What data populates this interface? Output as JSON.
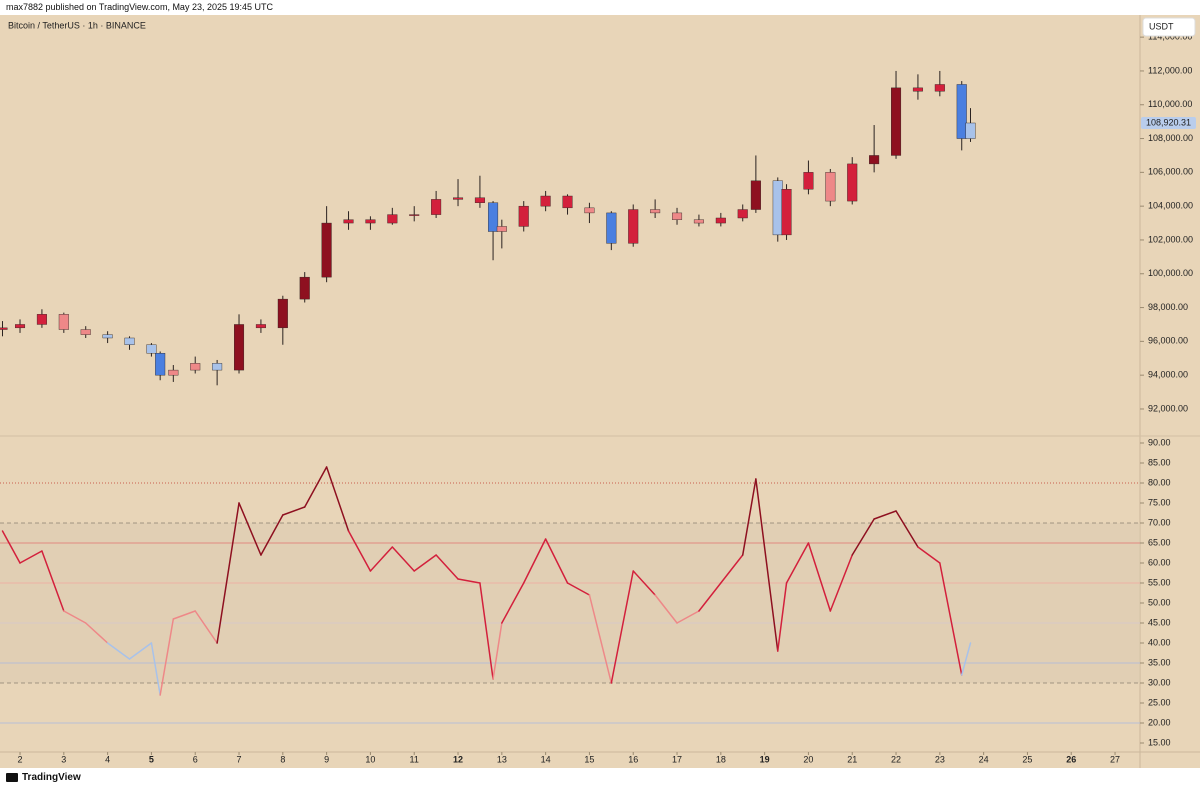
{
  "header": {
    "publisher": "max7882 published on TradingView.com, May 23, 2025 19:45 UTC"
  },
  "footer": {
    "brand": "TradingView"
  },
  "chart_data": {
    "type": "candlestick",
    "title": "Bitcoin / TetherUS · 1h · BINANCE",
    "currency": "USDT",
    "last_price": {
      "value": 108920.31,
      "label": "108,920.31"
    },
    "x": [
      1.6,
      2,
      2.5,
      3,
      3.5,
      4,
      4.5,
      5,
      5.2,
      5.5,
      6,
      6.5,
      7,
      7.5,
      8,
      8.5,
      9,
      9.5,
      10,
      10.5,
      11,
      11.5,
      12,
      12.5,
      12.8,
      13,
      13.5,
      14,
      14.5,
      15,
      15.5,
      16,
      16.5,
      17,
      17.5,
      18,
      18.5,
      18.8,
      19.3,
      19.5,
      20,
      20.5,
      21,
      21.5,
      22,
      22.5,
      23,
      23.5,
      23.7
    ],
    "open": [
      96700,
      96800,
      97000,
      97600,
      96700,
      96400,
      96200,
      95800,
      95300,
      94000,
      94300,
      94700,
      94300,
      97000,
      96800,
      98500,
      99800,
      103000,
      103200,
      103000,
      103500,
      103500,
      104400,
      104500,
      104200,
      102500,
      102800,
      104000,
      104600,
      103900,
      103600,
      101800,
      103800,
      103600,
      103200,
      103000,
      103300,
      103800,
      105500,
      102300,
      105000,
      106000,
      104300,
      106500,
      107000,
      111000,
      110800,
      111200,
      108000
    ],
    "high": [
      97200,
      97300,
      97900,
      97700,
      96900,
      96600,
      96300,
      95900,
      95400,
      94600,
      95100,
      94900,
      97600,
      97300,
      98700,
      100100,
      104000,
      103700,
      103400,
      103900,
      104000,
      104900,
      105600,
      105800,
      104300,
      103200,
      104300,
      104900,
      104700,
      104200,
      103700,
      104100,
      104400,
      103900,
      103500,
      103600,
      104100,
      107000,
      105700,
      105300,
      106700,
      106200,
      106900,
      108800,
      112000,
      111800,
      112000,
      111400,
      109800
    ],
    "low": [
      96300,
      96500,
      96800,
      96500,
      96200,
      95900,
      95500,
      95100,
      93700,
      93600,
      94100,
      93400,
      94100,
      96500,
      95800,
      98300,
      99500,
      102600,
      102600,
      102900,
      103100,
      103300,
      104000,
      103900,
      100800,
      101500,
      102500,
      103700,
      103500,
      103000,
      101400,
      101600,
      103300,
      102900,
      102800,
      102800,
      103100,
      103600,
      101900,
      102000,
      104700,
      104000,
      104100,
      106000,
      106800,
      110300,
      110500,
      107300,
      107800
    ],
    "close": [
      96800,
      97000,
      97600,
      96700,
      96400,
      96200,
      95800,
      95300,
      94000,
      94300,
      94700,
      94300,
      97000,
      96800,
      98500,
      99800,
      103000,
      103200,
      103000,
      103500,
      103500,
      104400,
      104500,
      104200,
      102500,
      102800,
      104000,
      104600,
      103900,
      103600,
      101800,
      103800,
      103600,
      103200,
      103000,
      103300,
      103800,
      105500,
      102300,
      105000,
      106000,
      104300,
      106500,
      107000,
      111000,
      110800,
      111200,
      108000,
      108920.31
    ],
    "xlim": [
      1.543,
      27.57
    ],
    "xticks": [
      2,
      3,
      4,
      5,
      6,
      7,
      8,
      9,
      10,
      11,
      12,
      13,
      14,
      15,
      16,
      17,
      18,
      19,
      20,
      21,
      22,
      23,
      24,
      25,
      26,
      27
    ],
    "xticks_bold": [
      5,
      12,
      19,
      26
    ],
    "ylim": [
      90460,
      115310
    ],
    "yticks": [
      {
        "value": 92000,
        "label": "92,000.00"
      },
      {
        "value": 94000,
        "label": "94,000.00"
      },
      {
        "value": 96000,
        "label": "96,000.00"
      },
      {
        "value": 98000,
        "label": "98,000.00"
      },
      {
        "value": 100000,
        "label": "100,000.00"
      },
      {
        "value": 102000,
        "label": "102,000.00"
      },
      {
        "value": 104000,
        "label": "104,000.00"
      },
      {
        "value": 106000,
        "label": "106,000.00"
      },
      {
        "value": 108000,
        "label": "108,000.00"
      },
      {
        "value": 110000,
        "label": "110,000.00"
      },
      {
        "value": 112000,
        "label": "112,000.00"
      },
      {
        "value": 114000,
        "label": "114,000.00"
      }
    ],
    "color_bands": [
      {
        "min": 70,
        "color": "#8e1020"
      },
      {
        "min": 55,
        "color": "#d3203c"
      },
      {
        "min": 45,
        "color": "#ee8888"
      },
      {
        "min": 35,
        "color": "#a8c2ea"
      },
      {
        "min": 0,
        "color": "#4a7fe0"
      }
    ],
    "rsi": {
      "values": [
        68,
        60,
        63,
        48,
        45,
        40,
        36,
        40,
        27,
        46,
        48,
        40,
        75,
        62,
        72,
        74,
        84,
        68,
        58,
        64,
        58,
        62,
        56,
        55,
        31,
        45,
        55,
        66,
        55,
        52,
        30,
        58,
        52,
        45,
        48,
        55,
        62,
        81,
        38,
        55,
        65,
        48,
        62,
        71,
        73,
        64,
        60,
        32,
        40
      ],
      "ylim": [
        12.75,
        91.5
      ],
      "yticks": [
        {
          "value": 15,
          "label": "15.00"
        },
        {
          "value": 20,
          "label": "20.00"
        },
        {
          "value": 25,
          "label": "25.00"
        },
        {
          "value": 30,
          "label": "30.00"
        },
        {
          "value": 35,
          "label": "35.00"
        },
        {
          "value": 40,
          "label": "40.00"
        },
        {
          "value": 45,
          "label": "45.00"
        },
        {
          "value": 50,
          "label": "50.00"
        },
        {
          "value": 55,
          "label": "55.00"
        },
        {
          "value": 60,
          "label": "60.00"
        },
        {
          "value": 65,
          "label": "65.00"
        },
        {
          "value": 70,
          "label": "70.00"
        },
        {
          "value": 75,
          "label": "75.00"
        },
        {
          "value": 80,
          "label": "80.00"
        },
        {
          "value": 85,
          "label": "85.00"
        },
        {
          "value": 90,
          "label": "90.00"
        }
      ],
      "band": [
        30,
        70
      ],
      "levels": [
        {
          "value": 80,
          "color": "#c0392b",
          "style": "dotted"
        },
        {
          "value": 70,
          "color": "#8a8070",
          "style": "dashed"
        },
        {
          "value": 65,
          "color": "#e07070",
          "style": "solid"
        },
        {
          "value": 55,
          "color": "#f0a8a0",
          "style": "solid"
        },
        {
          "value": 45,
          "color": "#d4c8d0",
          "style": "solid"
        },
        {
          "value": 35,
          "color": "#a8b8e0",
          "style": "solid"
        },
        {
          "value": 30,
          "color": "#8a8070",
          "style": "dashed"
        },
        {
          "value": 20,
          "color": "#a8b8e0",
          "style": "solid"
        }
      ]
    }
  }
}
